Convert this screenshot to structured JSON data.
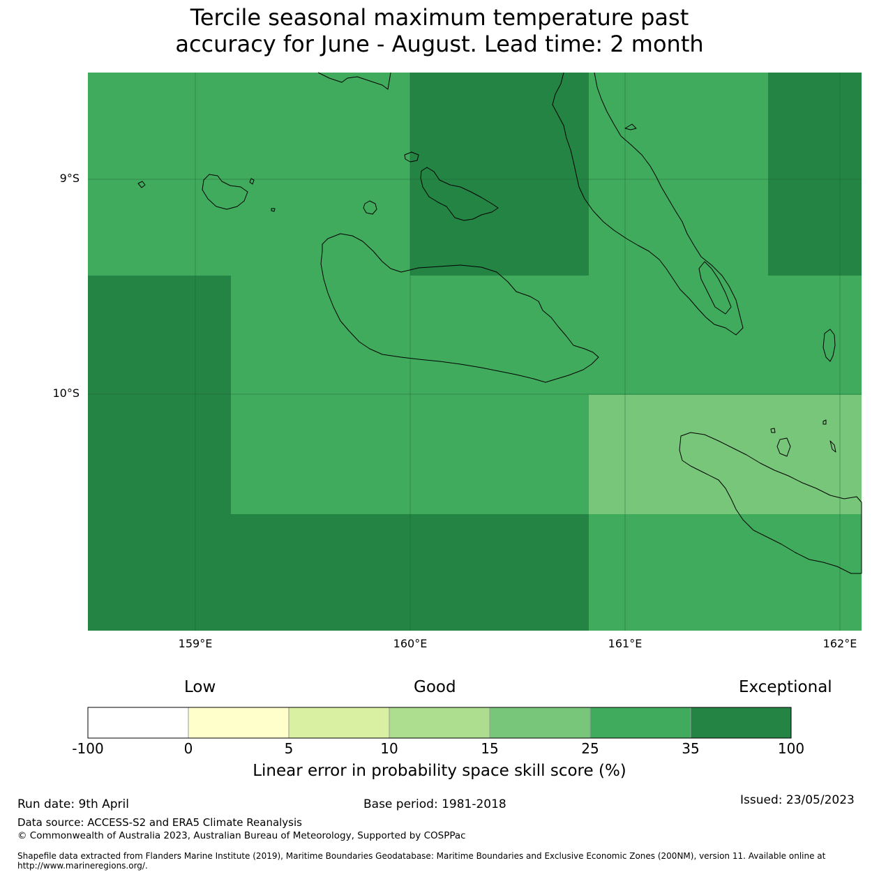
{
  "title_line1": "Tercile seasonal maximum temperature past",
  "title_line2": "accuracy for June - August. Lead time: 2 month",
  "map": {
    "lat_labels": [
      "9°S",
      "10°S"
    ],
    "lon_labels": [
      "159°E",
      "160°E",
      "161°E",
      "162°E"
    ],
    "colors": {
      "exceptional": "#238443",
      "good_high": "#41ab5d",
      "good_mid": "#78c679",
      "coast": "#000000"
    }
  },
  "colorbar": {
    "qualitative": [
      "Low",
      "Good",
      "Exceptional"
    ],
    "ticks": [
      "-100",
      "0",
      "5",
      "10",
      "15",
      "25",
      "35",
      "100"
    ],
    "colors": [
      "#ffffff",
      "#ffffcc",
      "#d9f0a3",
      "#addd8e",
      "#78c679",
      "#41ab5d",
      "#238443"
    ],
    "label": "Linear error in probability space skill score (%)"
  },
  "footer": {
    "run_date": "Run date: 9th April",
    "base_period": "Base period: 1981-2018",
    "issued": "Issued: 23/05/2023",
    "data_source": "Data source: ACCESS-S2 and ERA5 Climate Reanalysis",
    "copyright": "© Commonwealth of Australia 2023, Australian Bureau of Meteorology, Supported by COSPPac",
    "shapefile_line1": "Shapefile data extracted from Flanders Marine Institute (2019), Maritime Boundaries Geodatabase: Maritime Boundaries and Exclusive Economic Zones (200NM), version 11. Available online at",
    "shapefile_line2": "http://www.marineregions.org/."
  }
}
